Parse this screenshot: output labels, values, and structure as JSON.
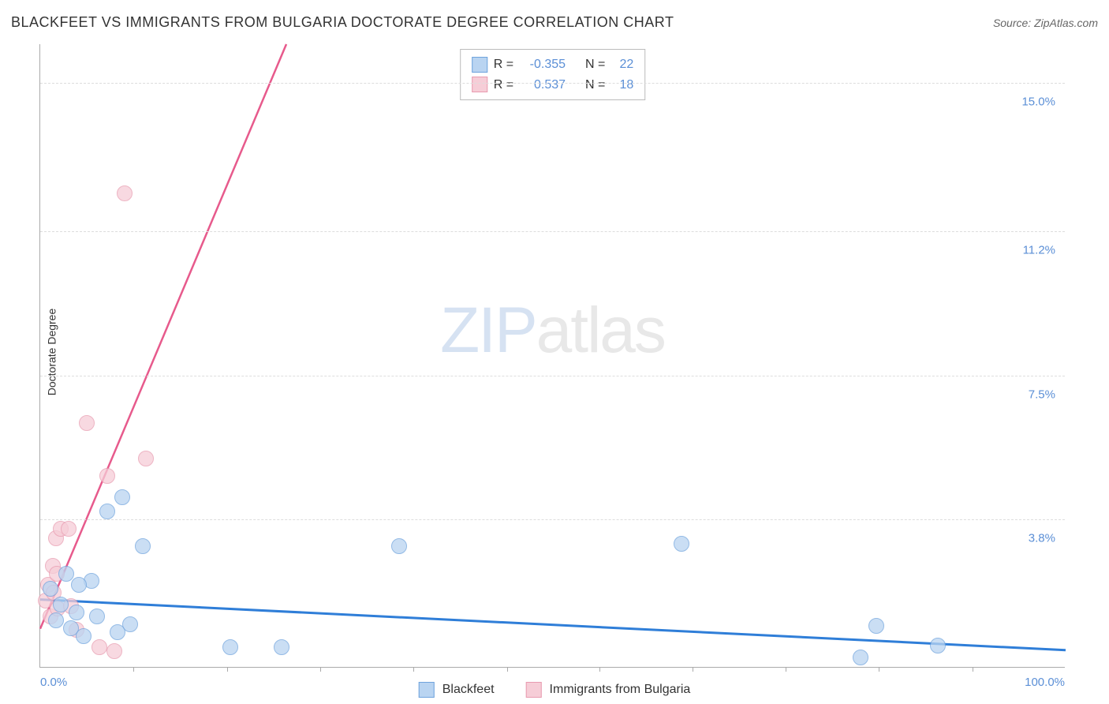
{
  "header": {
    "title": "BLACKFEET VS IMMIGRANTS FROM BULGARIA DOCTORATE DEGREE CORRELATION CHART",
    "source_prefix": "Source: ",
    "source": "ZipAtlas.com"
  },
  "watermark": {
    "part1": "ZIP",
    "part2": "atlas"
  },
  "chart": {
    "type": "scatter",
    "ylabel": "Doctorate Degree",
    "xlim": [
      0,
      100
    ],
    "ylim": [
      0,
      16.0
    ],
    "x_axis_labels": [
      {
        "value": 0.0,
        "label": "0.0%",
        "align": "left"
      },
      {
        "value": 100.0,
        "label": "100.0%",
        "align": "right"
      }
    ],
    "x_ticks_minor": [
      9.1,
      18.2,
      27.3,
      36.4,
      45.5,
      54.5,
      63.6,
      72.7,
      81.8,
      90.9
    ],
    "y_gridlines": [
      {
        "value": 3.8,
        "label": "3.8%"
      },
      {
        "value": 7.5,
        "label": "7.5%"
      },
      {
        "value": 11.2,
        "label": "11.2%"
      },
      {
        "value": 15.0,
        "label": "15.0%"
      }
    ],
    "background_color": "#ffffff",
    "grid_color": "#dddddd",
    "axis_color": "#aaaaaa",
    "tick_label_color": "#5b8fd6",
    "point_radius": 10,
    "series": [
      {
        "id": "blackfeet",
        "name": "Blackfeet",
        "fill": "#b9d4f1",
        "stroke": "#6fa3dd",
        "fill_opacity": 0.75,
        "r_value": "-0.355",
        "n_value": "22",
        "trend": {
          "x1": 0,
          "y1": 1.75,
          "x2": 100,
          "y2": 0.45,
          "color": "#2f7ed8",
          "width": 3,
          "dash": "none"
        },
        "points": [
          {
            "x": 1.0,
            "y": 2.0
          },
          {
            "x": 1.5,
            "y": 1.2
          },
          {
            "x": 2.0,
            "y": 1.6
          },
          {
            "x": 2.5,
            "y": 2.4
          },
          {
            "x": 3.0,
            "y": 1.0
          },
          {
            "x": 3.5,
            "y": 1.4
          },
          {
            "x": 4.2,
            "y": 0.8
          },
          {
            "x": 5.0,
            "y": 2.2
          },
          {
            "x": 5.5,
            "y": 1.3
          },
          {
            "x": 6.5,
            "y": 4.0
          },
          {
            "x": 7.5,
            "y": 0.9
          },
          {
            "x": 8.0,
            "y": 4.35
          },
          {
            "x": 8.8,
            "y": 1.1
          },
          {
            "x": 10.0,
            "y": 3.1
          },
          {
            "x": 18.5,
            "y": 0.5
          },
          {
            "x": 23.5,
            "y": 0.5
          },
          {
            "x": 35.0,
            "y": 3.1
          },
          {
            "x": 62.5,
            "y": 3.15
          },
          {
            "x": 81.5,
            "y": 1.05
          },
          {
            "x": 80.0,
            "y": 0.25
          },
          {
            "x": 87.5,
            "y": 0.55
          },
          {
            "x": 3.8,
            "y": 2.1
          }
        ]
      },
      {
        "id": "bulgaria",
        "name": "Immigrants from Bulgaria",
        "fill": "#f6cdd7",
        "stroke": "#e89bb0",
        "fill_opacity": 0.75,
        "r_value": "0.537",
        "n_value": "18",
        "trend": {
          "x1": 0,
          "y1": 1.0,
          "x2": 24,
          "y2": 16.0,
          "color": "#e75a8c",
          "width": 2.5,
          "dash": "none"
        },
        "trend_ext": {
          "x1": 9.6,
          "y1": 7.0,
          "x2": 24,
          "y2": 16.0,
          "color": "#e89bb0",
          "width": 1.2,
          "dash": "5,5"
        },
        "points": [
          {
            "x": 0.5,
            "y": 1.7
          },
          {
            "x": 0.8,
            "y": 2.1
          },
          {
            "x": 1.0,
            "y": 1.3
          },
          {
            "x": 1.2,
            "y": 2.6
          },
          {
            "x": 1.3,
            "y": 1.9
          },
          {
            "x": 1.5,
            "y": 3.3
          },
          {
            "x": 1.6,
            "y": 2.4
          },
          {
            "x": 1.7,
            "y": 1.5
          },
          {
            "x": 2.0,
            "y": 3.55
          },
          {
            "x": 2.8,
            "y": 3.55
          },
          {
            "x": 3.0,
            "y": 1.55
          },
          {
            "x": 3.5,
            "y": 0.95
          },
          {
            "x": 4.5,
            "y": 6.25
          },
          {
            "x": 5.8,
            "y": 0.5
          },
          {
            "x": 6.5,
            "y": 4.9
          },
          {
            "x": 7.2,
            "y": 0.4
          },
          {
            "x": 10.3,
            "y": 5.35
          },
          {
            "x": 8.2,
            "y": 12.15
          }
        ]
      }
    ]
  },
  "corr_box": {
    "r_label": "R =",
    "n_label": "N ="
  },
  "legend": {
    "series1": "Blackfeet",
    "series2": "Immigrants from Bulgaria"
  }
}
